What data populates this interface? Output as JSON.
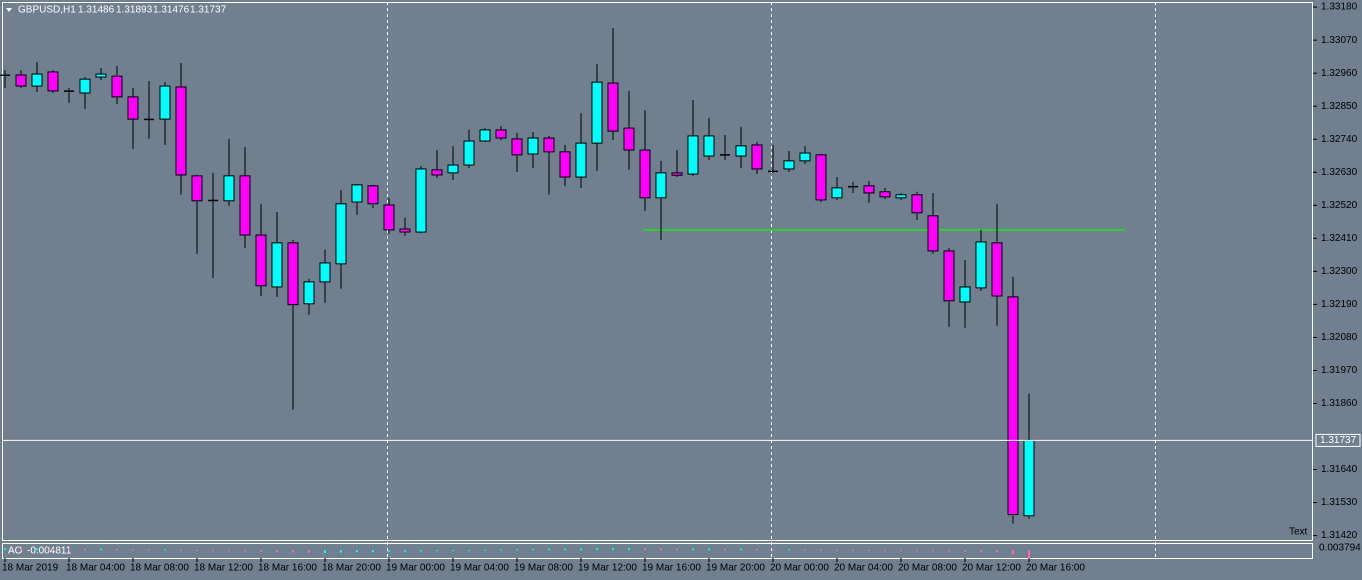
{
  "chart_data": {
    "type": "candlestick",
    "symbol": "GBPUSD,H1",
    "background": "#708090",
    "up_color": "#00ffff",
    "down_color": "#ff00ff",
    "wick_color": "#000000",
    "categories": [
      "18 Mar 2019",
      null,
      null,
      null,
      "18 Mar 04:00",
      null,
      null,
      null,
      "18 Mar 08:00",
      null,
      null,
      null,
      "18 Mar 12:00",
      null,
      null,
      null,
      "18 Mar 16:00",
      null,
      null,
      null,
      "18 Mar 20:00",
      null,
      null,
      null,
      "19 Mar 00:00",
      null,
      null,
      null,
      "19 Mar 04:00",
      null,
      null,
      null,
      "19 Mar 08:00",
      null,
      null,
      null,
      "19 Mar 12:00",
      null,
      null,
      null,
      "19 Mar 16:00",
      null,
      null,
      null,
      "19 Mar 20:00",
      null,
      null,
      null,
      "20 Mar 00:00",
      null,
      null,
      null,
      "20 Mar 04:00",
      null,
      null,
      null,
      "20 Mar 08:00",
      null,
      null,
      null,
      "20 Mar 12:00",
      null,
      null,
      null,
      "20 Mar 16:00"
    ],
    "open": [
      1.32954,
      1.32954,
      1.32917,
      1.32964,
      1.32901,
      1.32894,
      1.32947,
      1.3295,
      1.32881,
      1.32807,
      1.32807,
      1.32914,
      1.32618,
      1.32535,
      1.32535,
      1.32618,
      1.32421,
      1.32248,
      1.32395,
      1.32192,
      1.32265,
      1.32325,
      1.32531,
      1.32585,
      1.32521,
      1.32441,
      1.32431,
      1.32638,
      1.32628,
      1.32654,
      1.32734,
      1.32771,
      1.32741,
      1.32691,
      1.32744,
      1.32698,
      1.32614,
      1.32727,
      1.32927,
      1.32777,
      1.32704,
      1.32545,
      1.32628,
      1.32624,
      1.32684,
      1.32688,
      1.32684,
      1.32721,
      1.32634,
      1.32641,
      1.32668,
      1.32688,
      1.32545,
      1.32581,
      1.32585,
      1.32565,
      1.32545,
      1.32555,
      1.32485,
      1.32368,
      1.32198,
      1.32245,
      1.32395,
      1.32215,
      1.31486
    ],
    "high": [
      1.3297,
      1.3297,
      1.32997,
      1.3297,
      1.32911,
      1.32947,
      1.32977,
      1.32984,
      1.32911,
      1.32934,
      1.3293,
      1.32994,
      1.32621,
      1.32628,
      1.32741,
      1.32714,
      1.32525,
      1.32498,
      1.32405,
      1.32275,
      1.32372,
      1.32571,
      1.32591,
      1.32588,
      1.32545,
      1.32478,
      1.32651,
      1.32704,
      1.32717,
      1.32771,
      1.32777,
      1.32784,
      1.32761,
      1.32764,
      1.32751,
      1.32721,
      1.32827,
      1.3299,
      1.3311,
      1.32901,
      1.32837,
      1.32668,
      1.32704,
      1.32871,
      1.32811,
      1.32754,
      1.32781,
      1.32731,
      1.32721,
      1.32701,
      1.32717,
      1.3269,
      1.32614,
      1.32598,
      1.32601,
      1.32578,
      1.32561,
      1.32565,
      1.32561,
      1.32378,
      1.32338,
      1.32438,
      1.32525,
      1.32282,
      1.31893
    ],
    "low": [
      1.32911,
      1.32911,
      1.32897,
      1.32894,
      1.32861,
      1.32841,
      1.32937,
      1.32857,
      1.32708,
      1.32741,
      1.32721,
      1.32555,
      1.32358,
      1.32278,
      1.32518,
      1.32378,
      1.32218,
      1.32215,
      1.31839,
      1.32155,
      1.32195,
      1.32242,
      1.32488,
      1.32511,
      1.32425,
      1.32418,
      1.32428,
      1.32611,
      1.32604,
      1.32644,
      1.32731,
      1.32737,
      1.32631,
      1.32644,
      1.32555,
      1.32584,
      1.32578,
      1.32634,
      1.32737,
      1.32638,
      1.32501,
      1.32405,
      1.32614,
      1.32618,
      1.32671,
      1.32671,
      1.32644,
      1.32624,
      1.32628,
      1.32631,
      1.32658,
      1.32531,
      1.32538,
      1.32561,
      1.32528,
      1.32541,
      1.32538,
      1.32471,
      1.32358,
      1.32115,
      1.32112,
      1.32235,
      1.32119,
      1.3146,
      1.31476
    ],
    "close": [
      1.32952,
      1.32917,
      1.32957,
      1.32901,
      1.32899,
      1.3294,
      1.32957,
      1.32881,
      1.32807,
      1.32805,
      1.32917,
      1.32621,
      1.32535,
      1.32537,
      1.32618,
      1.32421,
      1.32252,
      1.32395,
      1.32189,
      1.32265,
      1.32328,
      1.32525,
      1.32588,
      1.32525,
      1.32438,
      1.32431,
      1.32641,
      1.32621,
      1.32654,
      1.32734,
      1.32771,
      1.32744,
      1.32688,
      1.32744,
      1.32698,
      1.32614,
      1.32727,
      1.3293,
      1.32767,
      1.32704,
      1.32545,
      1.32628,
      1.3262,
      1.32751,
      1.32751,
      1.32688,
      1.32718,
      1.32641,
      1.32632,
      1.32668,
      1.32694,
      1.32538,
      1.32578,
      1.32583,
      1.32561,
      1.32548,
      1.32555,
      1.32495,
      1.32368,
      1.32202,
      1.32248,
      1.32398,
      1.32218,
      1.3149,
      1.31737
    ],
    "ylim": [
      1.31402,
      1.33197
    ],
    "yticks": [
      {
        "value": 1.3318,
        "label": "1.33180"
      },
      {
        "value": 1.3307,
        "label": "1.33070"
      },
      {
        "value": 1.3296,
        "label": "1.32960"
      },
      {
        "value": 1.3285,
        "label": "1.32850"
      },
      {
        "value": 1.3274,
        "label": "1.32740"
      },
      {
        "value": 1.3263,
        "label": "1.32630"
      },
      {
        "value": 1.3252,
        "label": "1.32520"
      },
      {
        "value": 1.3241,
        "label": "1.32410"
      },
      {
        "value": 1.323,
        "label": "1.32300"
      },
      {
        "value": 1.3219,
        "label": "1.32190"
      },
      {
        "value": 1.3208,
        "label": "1.32080"
      },
      {
        "value": 1.3197,
        "label": "1.31970"
      },
      {
        "value": 1.3186,
        "label": "1.31860"
      },
      {
        "value": 1.3164,
        "label": "1.31640"
      },
      {
        "value": 1.3153,
        "label": "1.31530"
      },
      {
        "value": 1.3142,
        "label": "1.31420"
      }
    ],
    "level_line": {
      "value": 1.32438,
      "start_index": 40,
      "end_index": 70,
      "color": "#32cd32"
    },
    "annotation": "Text",
    "indicator": {
      "name": "AO",
      "values": [
        0.0012,
        0.0011,
        0.0012,
        0.001,
        0.0009,
        0.0008,
        0.0008,
        0.0007,
        0.0006,
        0.0005,
        0.0005,
        0.0003,
        0.0001,
        -0.0002,
        -0.0004,
        -0.0007,
        -0.001,
        -0.0012,
        -0.0015,
        -0.0016,
        -0.0016,
        -0.0015,
        -0.0013,
        -0.0012,
        -0.0011,
        -0.001,
        -0.0008,
        -0.0006,
        -0.0004,
        -0.0001,
        0.0002,
        0.0004,
        0.0006,
        0.0007,
        0.0008,
        0.0008,
        0.0009,
        0.0011,
        0.0012,
        0.0012,
        0.0011,
        0.001,
        0.0009,
        0.0009,
        0.0009,
        0.0008,
        0.0008,
        0.0007,
        0.0006,
        0.0006,
        0.0005,
        0.0004,
        0.0003,
        0.0002,
        0.0001,
        0.0,
        -0.0001,
        -0.0002,
        -0.0004,
        -0.0007,
        -0.0009,
        -0.001,
        -0.0012,
        -0.0025,
        -0.004811
      ],
      "ylim": [
        -0.0049,
        0.003794
      ],
      "yticks": [
        0.003794
      ],
      "up_color": "#00ffff",
      "down_color": "#ff69b4"
    }
  }
}
